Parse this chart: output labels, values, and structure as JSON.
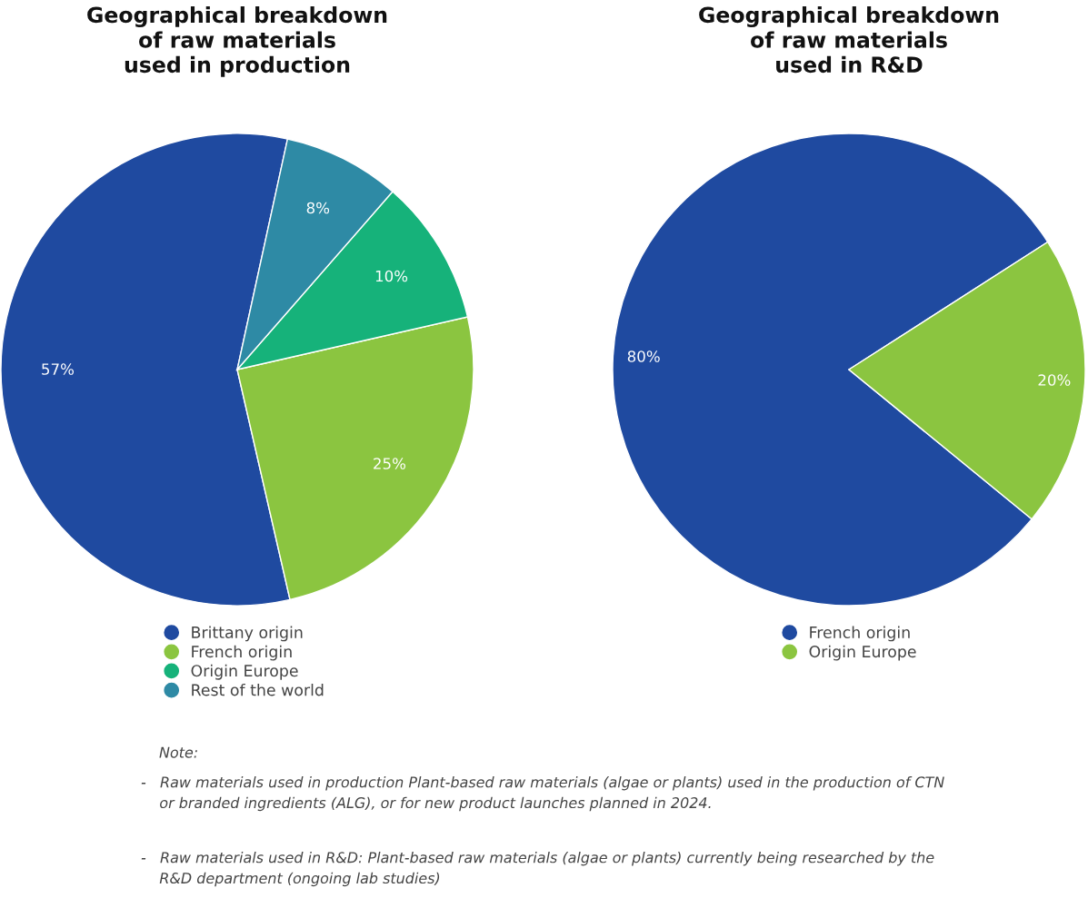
{
  "chart_data": [
    {
      "type": "pie",
      "title": "Geographical breakdown\nof raw materials\nused in production",
      "categories": [
        "Brittany origin",
        "French origin",
        "Origin Europe",
        "Rest of the world"
      ],
      "values": [
        57,
        25,
        10,
        8
      ],
      "colors": [
        "#1f4aa0",
        "#8bc540",
        "#16b27a",
        "#2e8aa5"
      ],
      "value_labels": [
        "57%",
        "25%",
        "10%",
        "8%"
      ],
      "legend": "bottom",
      "annotations": [
        "Note:",
        "-   Raw materials used in production Plant-based raw materials (algae or plants) used in the production of CTN\n    or branded ingredients (ALG), or for new product launches planned in 2024.",
        "-   Raw materials used in R&D: Plant-based raw materials (algae or plants) currently being researched by the\n    R&D department (ongoing lab studies)"
      ]
    },
    {
      "type": "pie",
      "title": "Geographical breakdown\nof raw materials\nused in R&D",
      "categories": [
        "French origin",
        "Origin Europe"
      ],
      "values": [
        80,
        20
      ],
      "colors": [
        "#1f4aa0",
        "#8bc540"
      ],
      "value_labels": [
        "80%",
        "20%"
      ],
      "legend": "bottom"
    }
  ]
}
